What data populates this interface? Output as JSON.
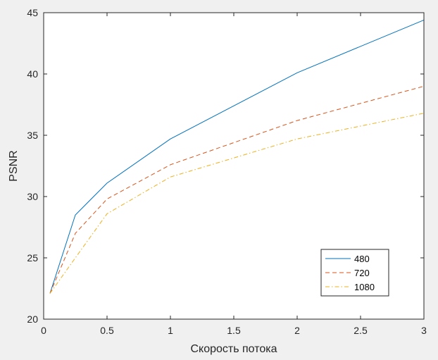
{
  "chart_data": {
    "type": "line",
    "title": "",
    "xlabel": "Скорость потока",
    "ylabel": "PSNR",
    "xlim": [
      0,
      3
    ],
    "ylim": [
      20,
      45
    ],
    "xticks": [
      0,
      0.5,
      1,
      1.5,
      2,
      2.5,
      3
    ],
    "yticks": [
      20,
      25,
      30,
      35,
      40,
      45
    ],
    "xtick_labels": [
      "0",
      "0.5",
      "1",
      "1.5",
      "2",
      "2.5",
      "3"
    ],
    "ytick_labels": [
      "20",
      "25",
      "30",
      "35",
      "40",
      "45"
    ],
    "grid": false,
    "legend_position": "bottom-right",
    "x": [
      0.05,
      0.25,
      0.5,
      1,
      2,
      3
    ],
    "series": [
      {
        "name": "480",
        "color": "#0072bd",
        "style": "solid",
        "values": [
          22.1,
          28.5,
          31.1,
          34.7,
          40.1,
          44.4
        ]
      },
      {
        "name": "720",
        "color": "#d95319",
        "style": "dashed",
        "values": [
          22.1,
          27.0,
          29.8,
          32.6,
          36.2,
          39.0
        ]
      },
      {
        "name": "1080",
        "color": "#edb120",
        "style": "dashdot",
        "values": [
          22.1,
          25.0,
          28.6,
          31.6,
          34.7,
          36.8
        ]
      }
    ]
  }
}
